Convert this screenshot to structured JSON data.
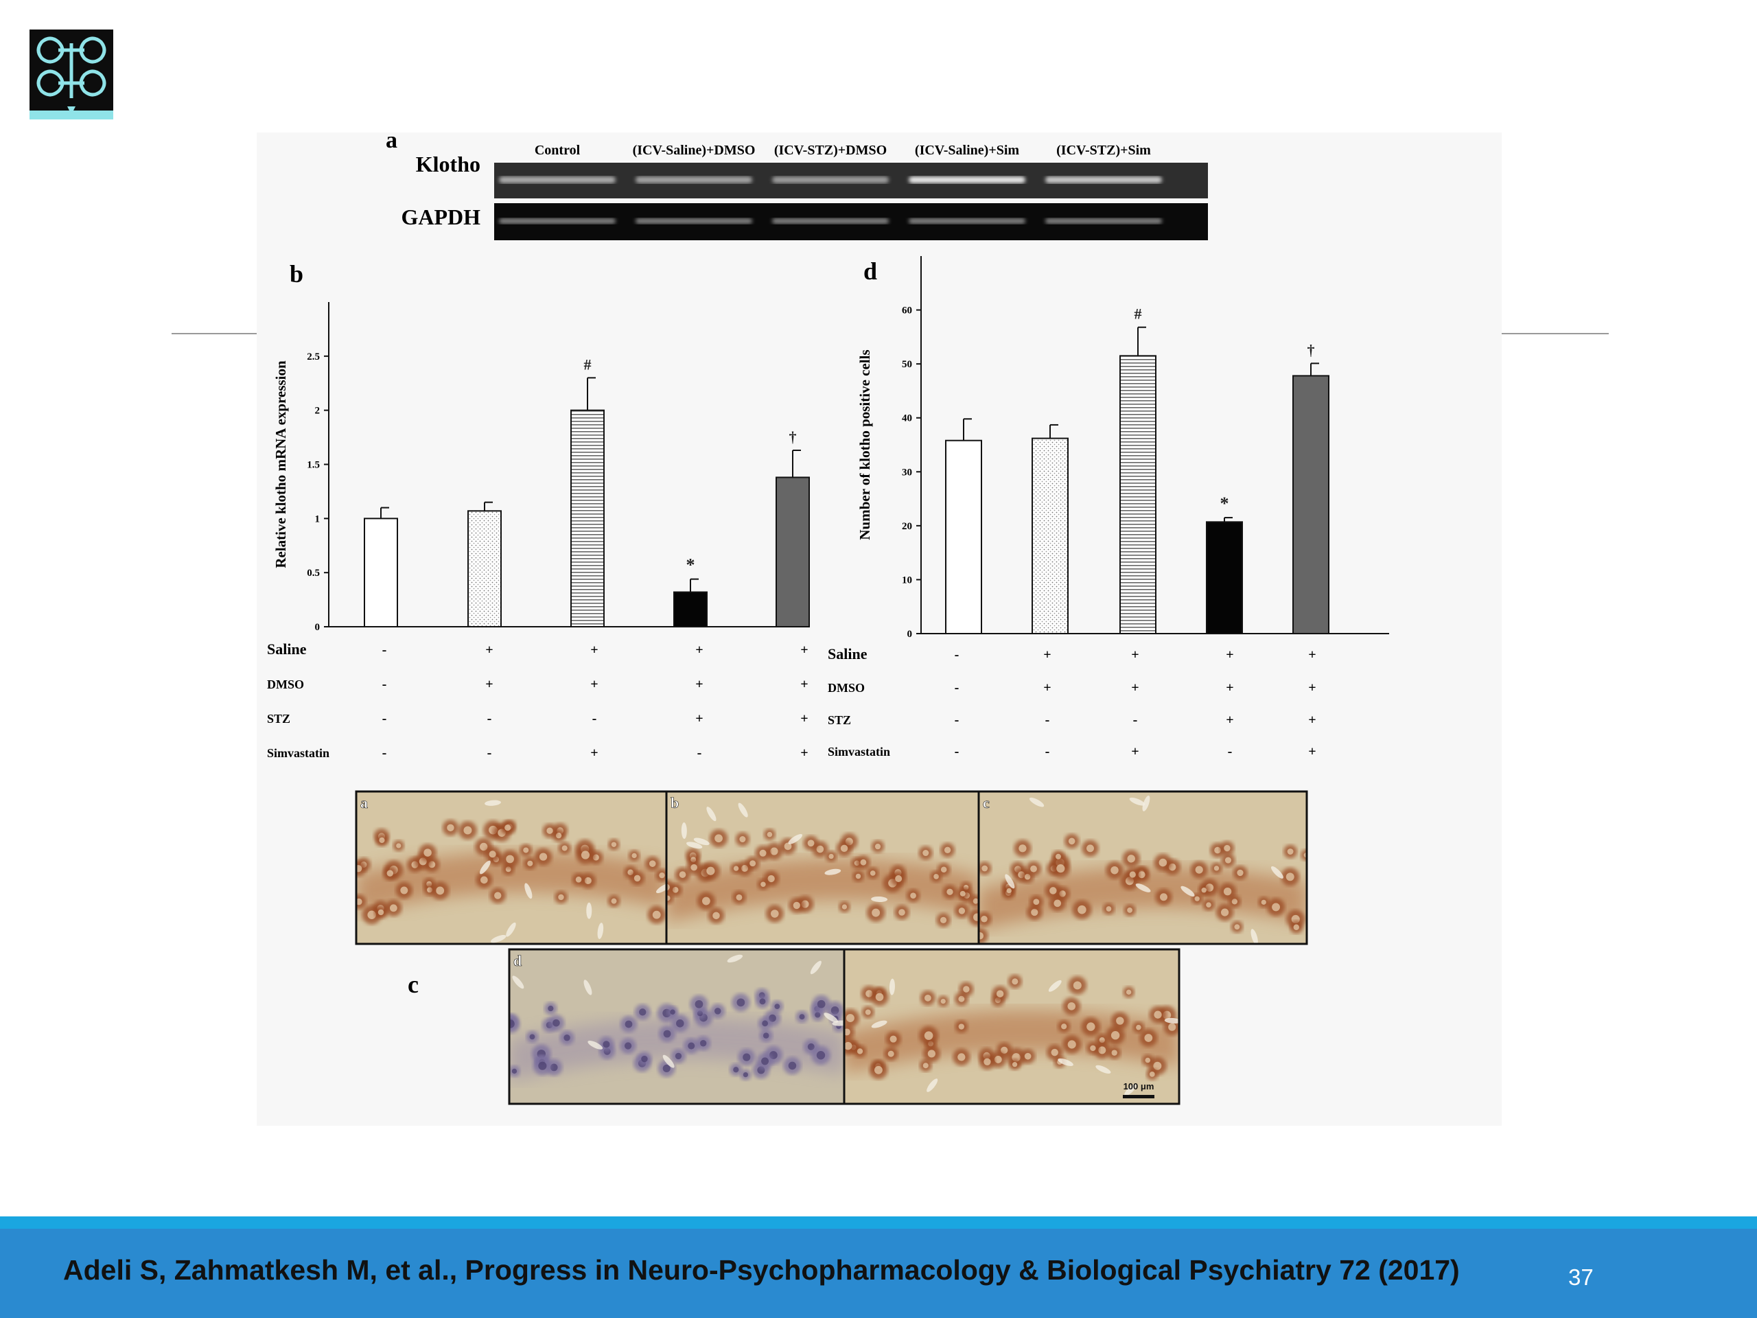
{
  "figure": {
    "panel_letters": {
      "a": "a",
      "b": "b",
      "c": "c",
      "d": "d"
    },
    "gel": {
      "lane_labels": [
        "Control",
        "(ICV-Saline)+DMSO",
        "(ICV-STZ)+DMSO",
        "(ICV-Saline)+Sim",
        "(ICV-STZ)+Sim"
      ],
      "row_labels": [
        "Klotho",
        "GAPDH"
      ],
      "klotho_band_intensity": [
        0.55,
        0.5,
        0.45,
        0.95,
        0.75
      ],
      "gapdh_band_intensity": [
        0.6,
        0.6,
        0.6,
        0.6,
        0.6
      ]
    },
    "micrograph_labels": [
      "a",
      "b",
      "c",
      "d",
      ""
    ],
    "scale_bar": "100 μm"
  },
  "chart_data": [
    {
      "type": "bar",
      "panel": "b",
      "ylabel": "Relative klotho mRNA expression",
      "ylim": [
        0,
        3
      ],
      "yticks": [
        "0",
        "0.5",
        "1",
        "1.5",
        "2",
        "2.5"
      ],
      "values": [
        1.0,
        1.07,
        2.0,
        0.32,
        1.38
      ],
      "errors": [
        0.1,
        0.08,
        0.3,
        0.12,
        0.25
      ],
      "markers": [
        "",
        "",
        "#",
        "*",
        "†"
      ],
      "fills": [
        "white",
        "dots",
        "hlines",
        "black",
        "gray"
      ],
      "condition_rows": [
        {
          "label": "Saline",
          "signs": [
            "-",
            "+",
            "+",
            "+",
            "+"
          ]
        },
        {
          "label": "DMSO",
          "signs": [
            "-",
            "+",
            "+",
            "+",
            "+"
          ]
        },
        {
          "label": "STZ",
          "signs": [
            "-",
            "-",
            "-",
            "+",
            "+"
          ]
        },
        {
          "label": "Simvastatin",
          "signs": [
            "-",
            "-",
            "+",
            "-",
            "+"
          ]
        }
      ]
    },
    {
      "type": "bar",
      "panel": "d",
      "ylabel": "Number of klotho positive cells",
      "ylim": [
        0,
        70
      ],
      "yticks": [
        "0",
        "10",
        "20",
        "30",
        "40",
        "50",
        "60"
      ],
      "values": [
        35.8,
        36.2,
        51.5,
        20.7,
        47.8
      ],
      "errors": [
        4.0,
        2.5,
        5.3,
        0.8,
        2.3
      ],
      "markers": [
        "",
        "",
        "#",
        "*",
        "†"
      ],
      "fills": [
        "white",
        "dots",
        "hlines",
        "black",
        "gray"
      ],
      "condition_rows": [
        {
          "label": "Saline",
          "signs": [
            "-",
            "+",
            "+",
            "+",
            "+"
          ]
        },
        {
          "label": "DMSO",
          "signs": [
            "-",
            "+",
            "+",
            "+",
            "+"
          ]
        },
        {
          "label": "STZ",
          "signs": [
            "-",
            "-",
            "-",
            "+",
            "+"
          ]
        },
        {
          "label": "Simvastatin",
          "signs": [
            "-",
            "-",
            "+",
            "-",
            "+"
          ]
        }
      ]
    }
  ],
  "footer": {
    "citation": "Adeli S, Zahmatkesh M, et al., Progress in Neuro-Psychopharmacology & Biological Psychiatry 72 (2017)",
    "slide_number": "37"
  },
  "colors": {
    "footer_bar": "#2a8ad0",
    "footer_stripe": "#1aa6e0",
    "logo_bg": "#0d0d0d",
    "logo_fg": "#8fe3e8",
    "stain_brown": "#a8582a"
  }
}
